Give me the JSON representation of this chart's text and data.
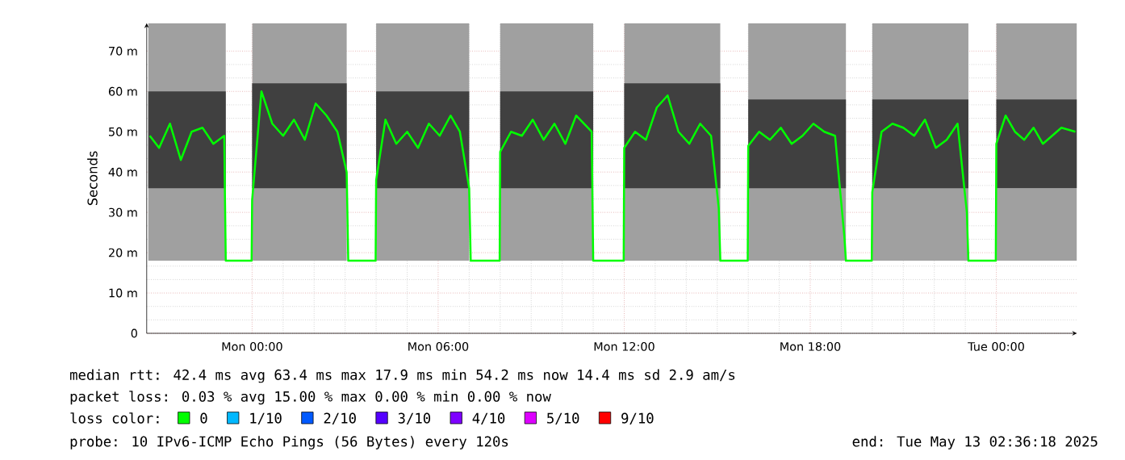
{
  "chart_data": {
    "type": "line",
    "ylabel": "Seconds",
    "xlim": [
      "2025-05-11T20:36",
      "2025-05-13T02:36"
    ],
    "xticks": [
      {
        "value": "2025-05-12T00:00",
        "label": "Mon 00:00"
      },
      {
        "value": "2025-05-12T06:00",
        "label": "Mon 06:00"
      },
      {
        "value": "2025-05-12T12:00",
        "label": "Mon 12:00"
      },
      {
        "value": "2025-05-12T18:00",
        "label": "Mon 18:00"
      },
      {
        "value": "2025-05-13T00:00",
        "label": "Tue 00:00"
      }
    ],
    "ylim": [
      0,
      76.9
    ],
    "yticks": [
      0,
      {
        "value": 10,
        "label": "10 m"
      },
      {
        "value": 20,
        "label": "20 m"
      },
      {
        "value": 30,
        "label": "30 m"
      },
      {
        "value": 40,
        "label": "40 m"
      },
      {
        "value": 50,
        "label": "50 m"
      },
      {
        "value": 60,
        "label": "60 m"
      },
      {
        "value": 70,
        "label": "70 m"
      }
    ],
    "grid": true,
    "legend": "bottom",
    "legend_title": "loss color:",
    "series": [
      {
        "type": "area",
        "color": "#a0a0a0",
        "x": [
          "2025-05-11T20:39",
          "2025-05-11T23:09",
          "2025-05-11T23:36",
          "2025-05-12T00:00",
          "2025-05-12T03:03",
          "2025-05-12T03:30",
          "2025-05-12T04:00",
          "2025-05-12T07:00",
          "2025-05-12T07:30",
          "2025-05-12T08:00",
          "2025-05-12T11:00",
          "2025-05-12T11:30",
          "2025-05-12T12:00",
          "2025-05-12T15:06",
          "2025-05-12T15:30",
          "2025-05-12T16:00",
          "2025-05-12T19:09",
          "2025-05-12T19:30",
          "2025-05-12T20:00",
          "2025-05-12T23:06",
          "2025-05-12T23:30",
          "2025-05-13T00:00",
          "2025-05-13T02:36"
        ],
        "values": [
          null,
          null,
          null,
          null,
          null,
          null,
          null,
          null,
          null,
          null,
          null,
          null,
          null,
          null,
          null,
          null,
          null,
          null,
          null,
          null,
          null,
          null,
          null
        ],
        "lower": [
          18,
          18,
          null,
          18,
          18,
          null,
          18,
          18,
          null,
          18,
          18,
          null,
          18,
          18,
          null,
          18,
          18,
          null,
          18,
          18,
          null,
          18,
          18
        ],
        "upper": [
          76.9,
          76.9,
          null,
          76.9,
          76.9,
          null,
          76.9,
          76.9,
          null,
          76.9,
          76.9,
          null,
          76.9,
          76.9,
          null,
          76.9,
          76.9,
          null,
          76.9,
          76.9,
          null,
          76.9,
          76.9
        ]
      },
      {
        "type": "area",
        "color": "#404040",
        "x": [
          "2025-05-11T20:39",
          "2025-05-11T23:09",
          "2025-05-11T23:36",
          "2025-05-12T00:00",
          "2025-05-12T03:03",
          "2025-05-12T03:30",
          "2025-05-12T04:00",
          "2025-05-12T07:00",
          "2025-05-12T07:30",
          "2025-05-12T08:00",
          "2025-05-12T11:00",
          "2025-05-12T11:30",
          "2025-05-12T12:00",
          "2025-05-12T15:06",
          "2025-05-12T15:30",
          "2025-05-12T16:00",
          "2025-05-12T19:09",
          "2025-05-12T19:30",
          "2025-05-12T20:00",
          "2025-05-12T23:06",
          "2025-05-12T23:30",
          "2025-05-13T00:00",
          "2025-05-13T02:36"
        ],
        "values": [
          null,
          null,
          null,
          null,
          null,
          null,
          null,
          null,
          null,
          null,
          null,
          null,
          null,
          null,
          null,
          null,
          null,
          null,
          null,
          null,
          null,
          null,
          null
        ],
        "lower": [
          36,
          36,
          null,
          36,
          36,
          null,
          36,
          36,
          null,
          36,
          36,
          null,
          36,
          36,
          null,
          36,
          36,
          null,
          36,
          36,
          null,
          36,
          36
        ],
        "upper": [
          60,
          60,
          null,
          62,
          62,
          null,
          60,
          60,
          null,
          60,
          60,
          null,
          62,
          62,
          null,
          58,
          58,
          null,
          58,
          58,
          null,
          58,
          58
        ]
      },
      {
        "name": "0",
        "color": "#00ff00",
        "x": [
          "2025-05-11T20:42",
          "2025-05-11T21:00",
          "2025-05-11T21:21",
          "2025-05-11T21:42",
          "2025-05-11T22:03",
          "2025-05-11T22:24",
          "2025-05-11T22:45",
          "2025-05-11T23:06",
          "2025-05-11T23:09",
          "2025-05-11T23:59",
          "2025-05-12T00:00",
          "2025-05-12T00:18",
          "2025-05-12T00:39",
          "2025-05-12T01:00",
          "2025-05-12T01:21",
          "2025-05-12T01:42",
          "2025-05-12T02:03",
          "2025-05-12T02:24",
          "2025-05-12T02:45",
          "2025-05-12T03:03",
          "2025-05-12T03:06",
          "2025-05-12T03:59",
          "2025-05-12T04:00",
          "2025-05-12T04:18",
          "2025-05-12T04:39",
          "2025-05-12T05:00",
          "2025-05-12T05:21",
          "2025-05-12T05:42",
          "2025-05-12T06:03",
          "2025-05-12T06:24",
          "2025-05-12T06:42",
          "2025-05-12T07:00",
          "2025-05-12T07:03",
          "2025-05-12T07:59",
          "2025-05-12T08:00",
          "2025-05-12T08:21",
          "2025-05-12T08:42",
          "2025-05-12T09:03",
          "2025-05-12T09:24",
          "2025-05-12T09:45",
          "2025-05-12T10:06",
          "2025-05-12T10:27",
          "2025-05-12T10:57",
          "2025-05-12T11:00",
          "2025-05-12T11:59",
          "2025-05-12T12:00",
          "2025-05-12T12:21",
          "2025-05-12T12:42",
          "2025-05-12T13:03",
          "2025-05-12T13:24",
          "2025-05-12T13:45",
          "2025-05-12T14:06",
          "2025-05-12T14:27",
          "2025-05-12T14:48",
          "2025-05-12T15:03",
          "2025-05-12T15:06",
          "2025-05-12T15:59",
          "2025-05-12T16:00",
          "2025-05-12T16:21",
          "2025-05-12T16:42",
          "2025-05-12T17:03",
          "2025-05-12T17:24",
          "2025-05-12T17:45",
          "2025-05-12T18:06",
          "2025-05-12T18:27",
          "2025-05-12T18:48",
          "2025-05-12T19:06",
          "2025-05-12T19:09",
          "2025-05-12T19:59",
          "2025-05-12T20:00",
          "2025-05-12T20:18",
          "2025-05-12T20:39",
          "2025-05-12T21:00",
          "2025-05-12T21:21",
          "2025-05-12T21:42",
          "2025-05-12T22:03",
          "2025-05-12T22:24",
          "2025-05-12T22:45",
          "2025-05-12T23:03",
          "2025-05-12T23:06",
          "2025-05-12T23:59",
          "2025-05-13T00:00",
          "2025-05-13T00:18",
          "2025-05-13T00:36",
          "2025-05-13T00:54",
          "2025-05-13T01:12",
          "2025-05-13T01:30",
          "2025-05-13T01:48",
          "2025-05-13T02:06",
          "2025-05-13T02:33"
        ],
        "values": [
          49,
          46,
          52,
          43,
          50,
          51,
          47,
          49,
          18,
          18,
          33,
          60,
          52,
          49,
          53,
          48,
          57,
          54,
          50,
          40,
          18,
          18,
          38,
          53,
          47,
          50,
          46,
          52,
          49,
          54,
          50,
          36,
          18,
          18,
          45,
          50,
          49,
          53,
          48,
          52,
          47,
          54,
          50,
          18,
          18,
          46,
          50,
          48,
          56,
          59,
          50,
          47,
          52,
          49,
          31,
          18,
          18,
          46.5,
          50,
          48,
          51,
          47,
          49,
          52,
          50,
          49,
          24,
          18,
          18,
          35,
          50,
          52,
          51,
          49,
          53,
          46,
          48,
          52,
          30,
          18,
          18,
          47,
          54,
          50,
          48,
          51,
          47,
          49,
          51,
          50
        ]
      },
      {
        "name": "1/10",
        "color": "#00b8ff"
      },
      {
        "name": "2/10",
        "color": "#0059ff"
      },
      {
        "name": "3/10",
        "color": "#5500ff"
      },
      {
        "name": "4/10",
        "color": "#7e00ff"
      },
      {
        "name": "5/10",
        "color": "#dd00ff"
      },
      {
        "name": "9/10",
        "color": "#ff0000"
      }
    ],
    "annotations": [
      "median rtt:  42.4 ms avg  63.4 ms max  17.9 ms min  54.2 ms now  14.4 ms sd  2.9   am/s",
      "packet loss: 0.03 % avg  15.00 % max  0.00 % min  0.00 % now",
      "probe:       10 IPv6-ICMP Echo Pings (56 Bytes) every 120s",
      "end: Tue May 13 02:36:18 2025"
    ]
  }
}
